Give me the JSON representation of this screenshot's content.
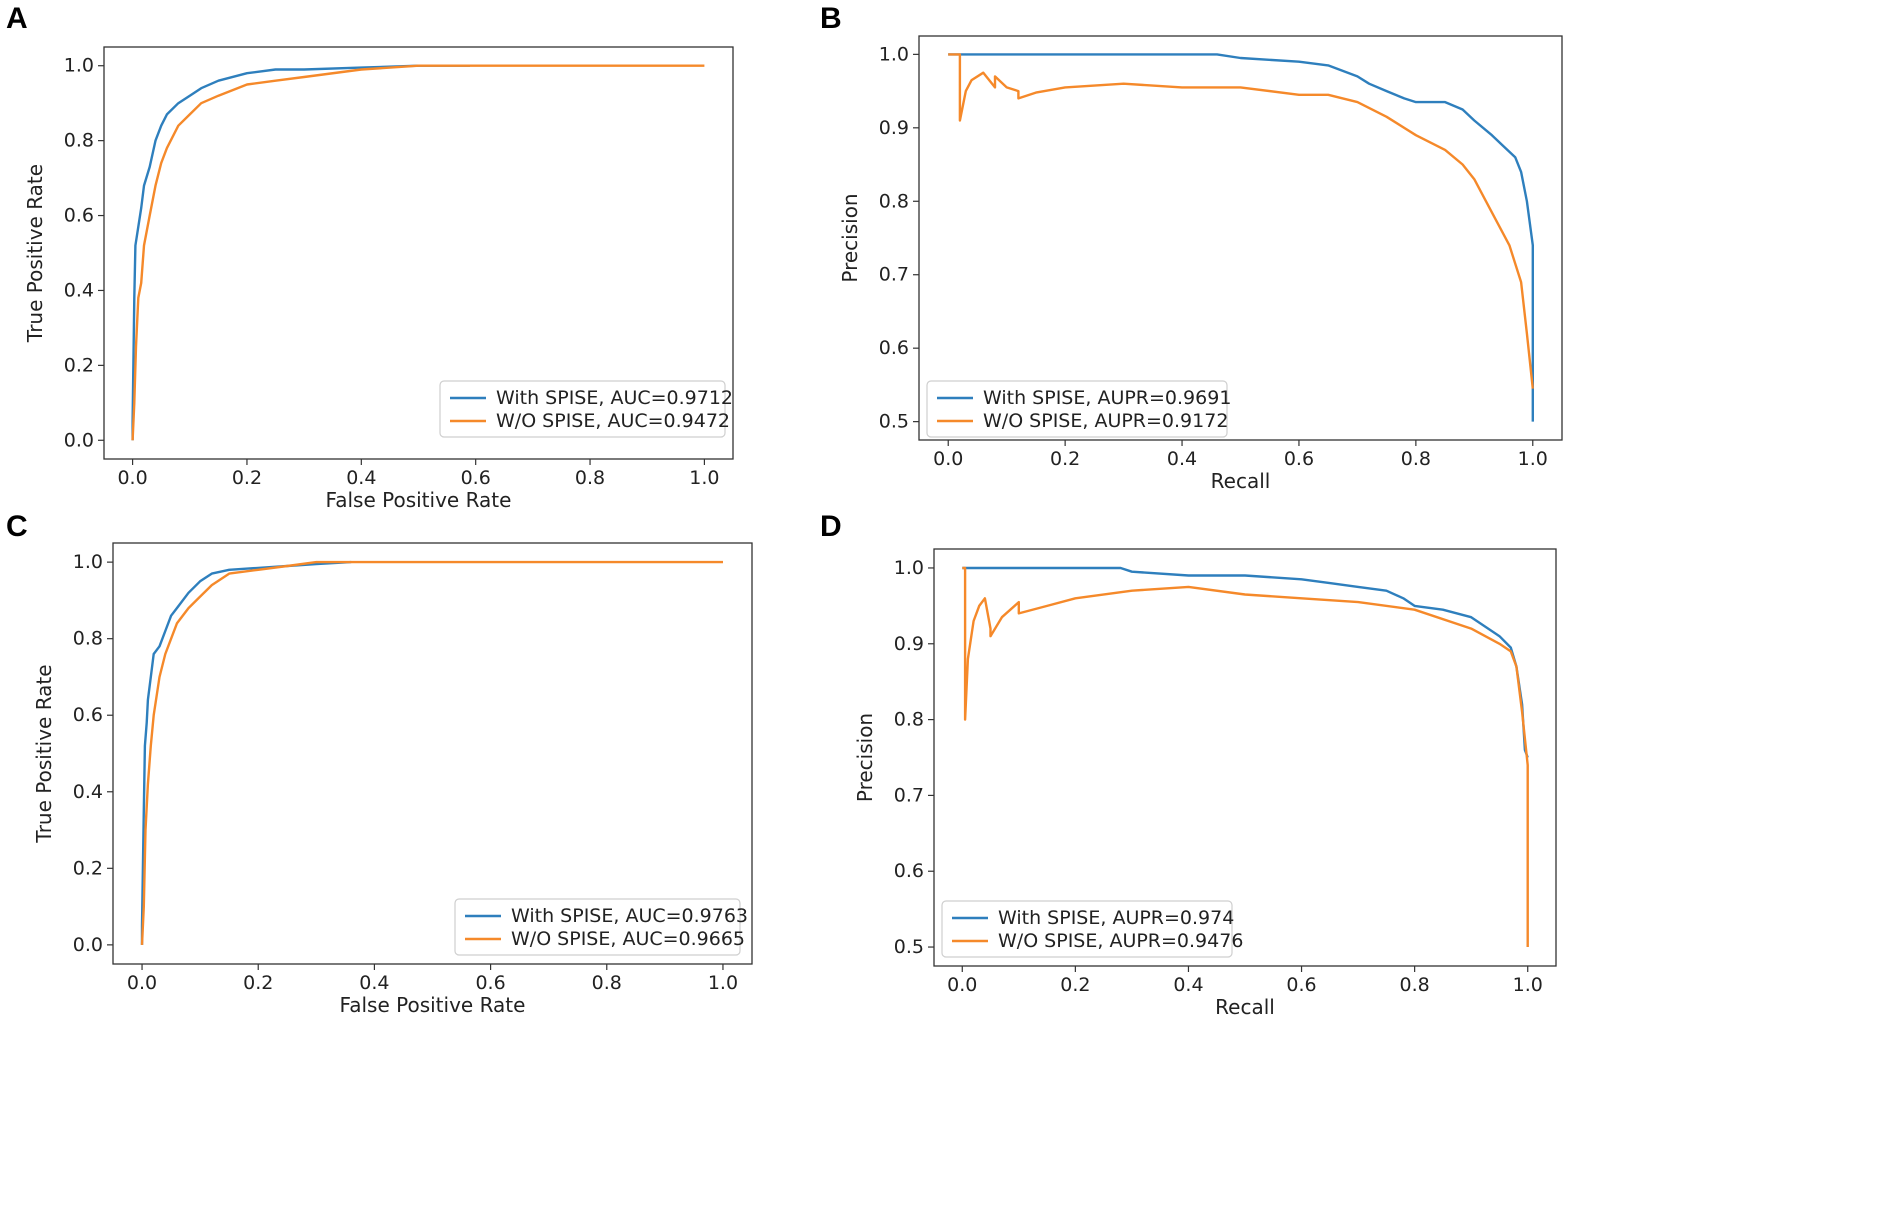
{
  "colors": {
    "with": "#2e7fbd",
    "without": "#f5892a"
  },
  "chart_data": [
    {
      "panel": "A",
      "type": "line",
      "title": "",
      "xlabel": "False Positive Rate",
      "ylabel": "True Positive Rate",
      "xlim": [
        -0.05,
        1.05
      ],
      "ylim": [
        -0.05,
        1.05
      ],
      "xticks": [
        "0.0",
        "0.2",
        "0.4",
        "0.6",
        "0.8",
        "1.0"
      ],
      "yticks": [
        "0.0",
        "0.2",
        "0.4",
        "0.6",
        "0.8",
        "1.0"
      ],
      "legend_position": "lower-right",
      "series": [
        {
          "name": "With SPISE, AUC=0.9712",
          "key": "with",
          "x": [
            0,
            0,
            0.003,
            0.005,
            0.01,
            0.015,
            0.02,
            0.03,
            0.04,
            0.05,
            0.06,
            0.08,
            0.1,
            0.12,
            0.15,
            0.2,
            0.25,
            0.3,
            0.4,
            0.5,
            0.59
          ],
          "y": [
            0,
            0.05,
            0.38,
            0.52,
            0.57,
            0.62,
            0.68,
            0.73,
            0.8,
            0.84,
            0.87,
            0.9,
            0.92,
            0.94,
            0.96,
            0.98,
            0.99,
            0.99,
            0.995,
            1.0,
            1.0
          ]
        },
        {
          "name": "W/O SPISE, AUC=0.9472",
          "key": "without",
          "x": [
            0,
            0.003,
            0.006,
            0.01,
            0.015,
            0.02,
            0.03,
            0.04,
            0.05,
            0.06,
            0.08,
            0.1,
            0.12,
            0.15,
            0.2,
            0.25,
            0.3,
            0.4,
            0.5,
            0.6,
            1.0
          ],
          "y": [
            0,
            0.1,
            0.25,
            0.38,
            0.42,
            0.52,
            0.6,
            0.68,
            0.74,
            0.78,
            0.84,
            0.87,
            0.9,
            0.92,
            0.95,
            0.96,
            0.97,
            0.99,
            1.0,
            1.0,
            1.0
          ]
        }
      ]
    },
    {
      "panel": "B",
      "type": "line",
      "title": "",
      "xlabel": "Recall",
      "ylabel": "Precision",
      "xlim": [
        -0.05,
        1.05
      ],
      "ylim": [
        0.475,
        1.025
      ],
      "xticks": [
        "0.0",
        "0.2",
        "0.4",
        "0.6",
        "0.8",
        "1.0"
      ],
      "yticks": [
        "0.5",
        "0.6",
        "0.7",
        "0.8",
        "0.9",
        "1.0"
      ],
      "legend_position": "lower-left",
      "series": [
        {
          "name": "With SPISE, AUPR=0.9691",
          "key": "with",
          "x": [
            0,
            0.2,
            0.46,
            0.5,
            0.6,
            0.65,
            0.7,
            0.72,
            0.75,
            0.78,
            0.8,
            0.85,
            0.88,
            0.9,
            0.93,
            0.95,
            0.97,
            0.98,
            0.99,
            1.0,
            1.0
          ],
          "y": [
            1.0,
            1.0,
            1.0,
            0.995,
            0.99,
            0.985,
            0.97,
            0.96,
            0.95,
            0.94,
            0.935,
            0.935,
            0.925,
            0.91,
            0.89,
            0.875,
            0.86,
            0.84,
            0.8,
            0.74,
            0.5
          ]
        },
        {
          "name": "W/O SPISE, AUPR=0.9172",
          "key": "without",
          "x": [
            0,
            0.02,
            0.02,
            0.03,
            0.04,
            0.06,
            0.08,
            0.08,
            0.1,
            0.12,
            0.12,
            0.15,
            0.2,
            0.3,
            0.4,
            0.5,
            0.6,
            0.65,
            0.7,
            0.75,
            0.8,
            0.85,
            0.88,
            0.9,
            0.92,
            0.94,
            0.96,
            0.98,
            0.99,
            1.0
          ],
          "y": [
            1.0,
            1.0,
            0.91,
            0.95,
            0.965,
            0.975,
            0.955,
            0.97,
            0.955,
            0.95,
            0.94,
            0.948,
            0.955,
            0.96,
            0.955,
            0.955,
            0.945,
            0.945,
            0.935,
            0.915,
            0.89,
            0.87,
            0.85,
            0.83,
            0.8,
            0.77,
            0.74,
            0.69,
            0.62,
            0.545
          ]
        }
      ]
    },
    {
      "panel": "C",
      "type": "line",
      "title": "",
      "xlabel": "False Positive Rate",
      "ylabel": "True Positive Rate",
      "xlim": [
        -0.05,
        1.05
      ],
      "ylim": [
        -0.05,
        1.05
      ],
      "xticks": [
        "0.0",
        "0.2",
        "0.4",
        "0.6",
        "0.8",
        "1.0"
      ],
      "yticks": [
        "0.0",
        "0.2",
        "0.4",
        "0.6",
        "0.8",
        "1.0"
      ],
      "legend_position": "lower-right",
      "series": [
        {
          "name": "With SPISE, AUC=0.9763",
          "key": "with",
          "x": [
            0,
            0,
            0.003,
            0.005,
            0.008,
            0.01,
            0.015,
            0.02,
            0.03,
            0.04,
            0.05,
            0.06,
            0.08,
            0.1,
            0.12,
            0.15,
            0.2,
            0.25,
            0.3,
            0.36
          ],
          "y": [
            0,
            0.05,
            0.35,
            0.52,
            0.58,
            0.64,
            0.7,
            0.76,
            0.78,
            0.82,
            0.86,
            0.88,
            0.92,
            0.95,
            0.97,
            0.98,
            0.985,
            0.99,
            0.995,
            1.0
          ]
        },
        {
          "name": "W/O SPISE, AUC=0.9665",
          "key": "without",
          "x": [
            0,
            0.003,
            0.006,
            0.01,
            0.015,
            0.02,
            0.03,
            0.04,
            0.05,
            0.06,
            0.08,
            0.1,
            0.12,
            0.15,
            0.2,
            0.25,
            0.3,
            0.35,
            0.4,
            1.0
          ],
          "y": [
            0,
            0.1,
            0.3,
            0.42,
            0.52,
            0.6,
            0.7,
            0.76,
            0.8,
            0.84,
            0.88,
            0.91,
            0.94,
            0.97,
            0.98,
            0.99,
            1.0,
            1.0,
            1.0,
            1.0
          ]
        }
      ]
    },
    {
      "panel": "D",
      "type": "line",
      "title": "",
      "xlabel": "Recall",
      "ylabel": "Precision",
      "xlim": [
        -0.05,
        1.05
      ],
      "ylim": [
        0.475,
        1.025
      ],
      "xticks": [
        "0.0",
        "0.2",
        "0.4",
        "0.6",
        "0.8",
        "1.0"
      ],
      "yticks": [
        "0.5",
        "0.6",
        "0.7",
        "0.8",
        "0.9",
        "1.0"
      ],
      "legend_position": "lower-left",
      "series": [
        {
          "name": "With SPISE, AUPR=0.974",
          "key": "with",
          "x": [
            0,
            0.28,
            0.3,
            0.4,
            0.5,
            0.6,
            0.65,
            0.7,
            0.75,
            0.78,
            0.8,
            0.85,
            0.9,
            0.95,
            0.97,
            0.98,
            0.99,
            0.995,
            1.0
          ],
          "y": [
            1.0,
            1.0,
            0.995,
            0.99,
            0.99,
            0.985,
            0.98,
            0.975,
            0.97,
            0.96,
            0.95,
            0.945,
            0.935,
            0.91,
            0.895,
            0.87,
            0.82,
            0.76,
            0.75
          ]
        },
        {
          "name": "W/O SPISE, AUPR=0.9476",
          "key": "without",
          "x": [
            0,
            0.005,
            0.005,
            0.01,
            0.02,
            0.03,
            0.04,
            0.05,
            0.05,
            0.07,
            0.1,
            0.1,
            0.15,
            0.2,
            0.3,
            0.4,
            0.5,
            0.6,
            0.7,
            0.8,
            0.9,
            0.95,
            0.97,
            0.98,
            0.99,
            1.0,
            1.0
          ],
          "y": [
            1.0,
            1.0,
            0.8,
            0.88,
            0.93,
            0.95,
            0.96,
            0.92,
            0.91,
            0.935,
            0.955,
            0.94,
            0.95,
            0.96,
            0.97,
            0.975,
            0.965,
            0.96,
            0.955,
            0.945,
            0.92,
            0.9,
            0.89,
            0.87,
            0.81,
            0.74,
            0.5
          ]
        }
      ]
    }
  ]
}
